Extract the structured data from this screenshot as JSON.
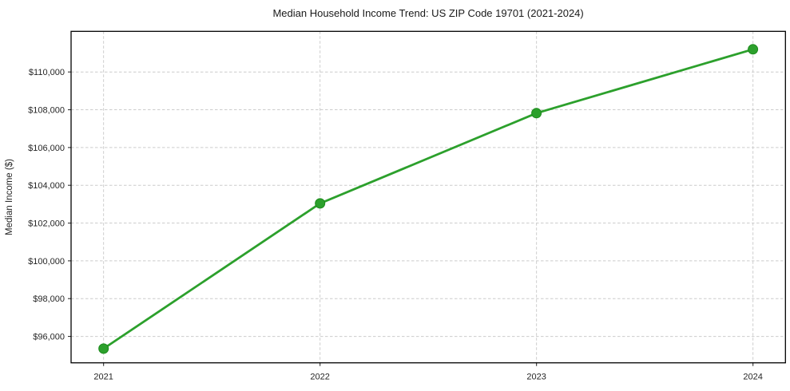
{
  "page": {
    "background": "#ffffff"
  },
  "chart_data": {
    "type": "line",
    "title": "Median Household Income Trend: US ZIP Code 19701 (2021-2024)",
    "xlabel": "",
    "ylabel": "Median Income ($)",
    "x": [
      2021,
      2022,
      2023,
      2024
    ],
    "x_tick_labels": [
      "2021",
      "2022",
      "2023",
      "2024"
    ],
    "series": [
      {
        "name": "Median Household Income",
        "values": [
          95350,
          103040,
          107820,
          111200
        ],
        "color": "#2ca02c",
        "marker": "circle",
        "marker_edge_color": "#1d8a1d"
      }
    ],
    "y_ticks": [
      96000,
      98000,
      100000,
      102000,
      104000,
      106000,
      108000,
      110000
    ],
    "y_tick_labels": [
      "$96,000",
      "$98,000",
      "$100,000",
      "$102,000",
      "$104,000",
      "$106,000",
      "$108,000",
      "$110,000"
    ],
    "ylim": [
      94600,
      112150
    ],
    "xlim": [
      2020.85,
      2024.15
    ],
    "grid": true,
    "grid_style": "dashed",
    "grid_color": "#cccccc",
    "axis_color": "#000000",
    "tick_color": "#333333",
    "legend_position": "none"
  }
}
